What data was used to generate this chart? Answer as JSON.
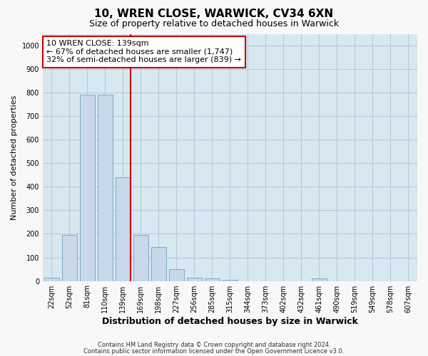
{
  "title1": "10, WREN CLOSE, WARWICK, CV34 6XN",
  "title2": "Size of property relative to detached houses in Warwick",
  "xlabel": "Distribution of detached houses by size in Warwick",
  "ylabel": "Number of detached properties",
  "categories": [
    "22sqm",
    "52sqm",
    "81sqm",
    "110sqm",
    "139sqm",
    "169sqm",
    "198sqm",
    "227sqm",
    "256sqm",
    "285sqm",
    "315sqm",
    "344sqm",
    "373sqm",
    "402sqm",
    "432sqm",
    "461sqm",
    "490sqm",
    "519sqm",
    "549sqm",
    "578sqm",
    "607sqm"
  ],
  "values": [
    15,
    195,
    790,
    790,
    440,
    195,
    145,
    50,
    15,
    10,
    5,
    0,
    0,
    0,
    0,
    10,
    0,
    0,
    0,
    0,
    0
  ],
  "bar_color": "#c8d8ea",
  "bar_edge_color": "#7aaac8",
  "vline_color": "#cc0000",
  "annotation_text": "10 WREN CLOSE: 139sqm\n← 67% of detached houses are smaller (1,747)\n32% of semi-detached houses are larger (839) →",
  "annotation_box_color": "#ffffff",
  "annotation_box_edge": "#cc0000",
  "ylim": [
    0,
    1050
  ],
  "yticks": [
    0,
    100,
    200,
    300,
    400,
    500,
    600,
    700,
    800,
    900,
    1000
  ],
  "grid_color": "#b8c8d8",
  "bg_color": "#d8e8f0",
  "fig_bg_color": "#f8f8f8",
  "footer1": "Contains HM Land Registry data © Crown copyright and database right 2024.",
  "footer2": "Contains public sector information licensed under the Open Government Licence v3.0.",
  "property_bin_index": 4,
  "title1_fontsize": 11,
  "title2_fontsize": 9,
  "xlabel_fontsize": 9,
  "ylabel_fontsize": 8,
  "tick_fontsize": 7,
  "annotation_fontsize": 8,
  "footer_fontsize": 6
}
